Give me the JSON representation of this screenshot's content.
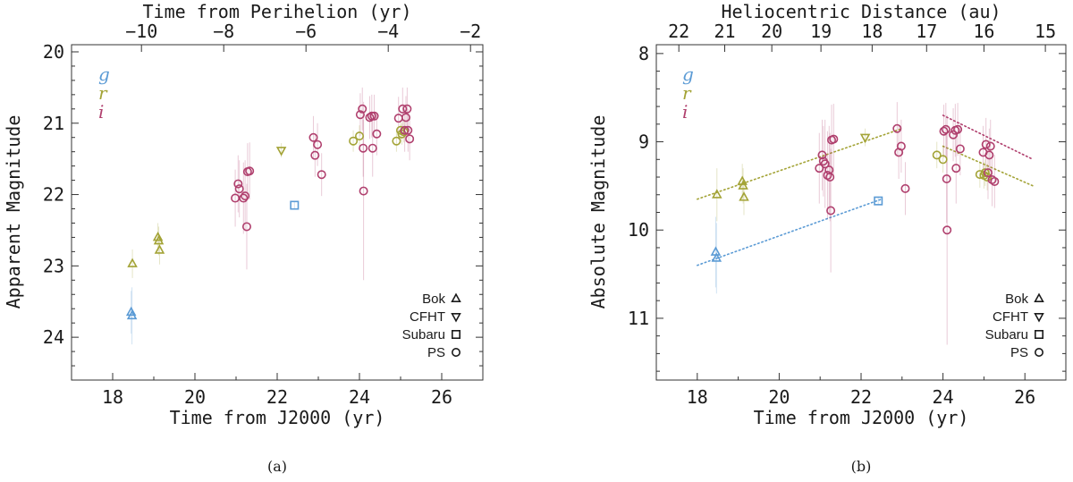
{
  "colors": {
    "g": "#5b9bd5",
    "r": "#a3a336",
    "i": "#b0406e",
    "frame": "#333333",
    "errorbar": "#e8a5b8"
  },
  "chart_data": [
    {
      "id": "a",
      "type": "scatter",
      "caption": "(a)",
      "xlabel": "Time from J2000 (yr)",
      "ylabel": "Apparent Magnitude",
      "top_label": "Time from Perihelion (yr)",
      "xlim": [
        17,
        27
      ],
      "ylim": [
        24.6,
        19.9
      ],
      "xticks": [
        18,
        20,
        22,
        24,
        26
      ],
      "yticks": [
        20,
        21,
        22,
        23,
        24
      ],
      "top_ticks": [
        {
          "label": "−10",
          "x": 18.7
        },
        {
          "label": "−8",
          "x": 20.7
        },
        {
          "label": "−6",
          "x": 22.7
        },
        {
          "label": "−4",
          "x": 24.7
        },
        {
          "label": "−2",
          "x": 26.7
        }
      ],
      "bands": [
        "g",
        "r",
        "i"
      ],
      "legend": [
        {
          "label": "Bok",
          "marker": "triangle-up"
        },
        {
          "label": "CFHT",
          "marker": "triangle-down"
        },
        {
          "label": "Subaru",
          "marker": "square"
        },
        {
          "label": "PS",
          "marker": "circle"
        }
      ],
      "points": [
        {
          "x": 18.45,
          "y": 23.65,
          "band": "g",
          "marker": "triangle-up",
          "err": 0.3
        },
        {
          "x": 18.47,
          "y": 23.7,
          "band": "g",
          "marker": "triangle-up",
          "err": 0.4
        },
        {
          "x": 18.48,
          "y": 22.97,
          "band": "r",
          "marker": "triangle-up",
          "err": 0.2
        },
        {
          "x": 19.1,
          "y": 22.6,
          "band": "r",
          "marker": "triangle-up",
          "err": 0.2
        },
        {
          "x": 19.12,
          "y": 22.65,
          "band": "r",
          "marker": "triangle-up",
          "err": 0.2
        },
        {
          "x": 19.14,
          "y": 22.78,
          "band": "r",
          "marker": "triangle-up",
          "err": 0.2
        },
        {
          "x": 22.1,
          "y": 21.38,
          "band": "r",
          "marker": "triangle-down",
          "err": 0.1
        },
        {
          "x": 22.42,
          "y": 22.15,
          "band": "g",
          "marker": "square",
          "err": 0.05
        },
        {
          "x": 20.98,
          "y": 22.05,
          "band": "i",
          "marker": "circle",
          "err": 0.4
        },
        {
          "x": 21.05,
          "y": 21.85,
          "band": "i",
          "marker": "circle",
          "err": 0.4
        },
        {
          "x": 21.08,
          "y": 21.92,
          "band": "i",
          "marker": "circle",
          "err": 0.4
        },
        {
          "x": 21.18,
          "y": 22.05,
          "band": "i",
          "marker": "circle",
          "err": 0.5
        },
        {
          "x": 21.22,
          "y": 22.02,
          "band": "i",
          "marker": "circle",
          "err": 0.5
        },
        {
          "x": 21.26,
          "y": 22.45,
          "band": "i",
          "marker": "circle",
          "err": 0.6
        },
        {
          "x": 21.28,
          "y": 21.68,
          "band": "i",
          "marker": "circle",
          "err": 0.4
        },
        {
          "x": 21.33,
          "y": 21.67,
          "band": "i",
          "marker": "circle",
          "err": 0.4
        },
        {
          "x": 22.88,
          "y": 21.2,
          "band": "i",
          "marker": "circle",
          "err": 0.3
        },
        {
          "x": 22.92,
          "y": 21.45,
          "band": "i",
          "marker": "circle",
          "err": 0.3
        },
        {
          "x": 22.98,
          "y": 21.3,
          "band": "i",
          "marker": "circle",
          "err": 0.3
        },
        {
          "x": 23.08,
          "y": 21.72,
          "band": "i",
          "marker": "circle",
          "err": 0.3
        },
        {
          "x": 23.85,
          "y": 21.25,
          "band": "r",
          "marker": "circle",
          "err": 0.15
        },
        {
          "x": 24.0,
          "y": 21.18,
          "band": "r",
          "marker": "circle",
          "err": 0.15
        },
        {
          "x": 24.02,
          "y": 20.88,
          "band": "i",
          "marker": "circle",
          "err": 0.3
        },
        {
          "x": 24.07,
          "y": 20.8,
          "band": "i",
          "marker": "circle",
          "err": 0.3
        },
        {
          "x": 24.09,
          "y": 21.35,
          "band": "i",
          "marker": "circle",
          "err": 0.4
        },
        {
          "x": 24.1,
          "y": 21.95,
          "band": "i",
          "marker": "circle",
          "err": 1.25
        },
        {
          "x": 24.25,
          "y": 20.92,
          "band": "i",
          "marker": "circle",
          "err": 0.3
        },
        {
          "x": 24.3,
          "y": 20.9,
          "band": "i",
          "marker": "circle",
          "err": 0.3
        },
        {
          "x": 24.32,
          "y": 21.35,
          "band": "i",
          "marker": "circle",
          "err": 0.4
        },
        {
          "x": 24.36,
          "y": 20.9,
          "band": "i",
          "marker": "circle",
          "err": 0.3
        },
        {
          "x": 24.42,
          "y": 21.15,
          "band": "i",
          "marker": "circle",
          "err": 0.3
        },
        {
          "x": 24.9,
          "y": 21.25,
          "band": "r",
          "marker": "circle",
          "err": 0.15
        },
        {
          "x": 24.95,
          "y": 20.93,
          "band": "i",
          "marker": "circle",
          "err": 0.3
        },
        {
          "x": 25.0,
          "y": 21.1,
          "band": "r",
          "marker": "circle",
          "err": 0.15
        },
        {
          "x": 25.03,
          "y": 21.15,
          "band": "r",
          "marker": "circle",
          "err": 0.15
        },
        {
          "x": 25.05,
          "y": 20.8,
          "band": "i",
          "marker": "circle",
          "err": 0.3
        },
        {
          "x": 25.08,
          "y": 21.12,
          "band": "r",
          "marker": "circle",
          "err": 0.15
        },
        {
          "x": 25.1,
          "y": 21.1,
          "band": "i",
          "marker": "circle",
          "err": 0.3
        },
        {
          "x": 25.13,
          "y": 20.92,
          "band": "i",
          "marker": "circle",
          "err": 0.3
        },
        {
          "x": 25.16,
          "y": 20.8,
          "band": "i",
          "marker": "circle",
          "err": 0.3
        },
        {
          "x": 25.18,
          "y": 21.1,
          "band": "i",
          "marker": "circle",
          "err": 0.3
        },
        {
          "x": 25.22,
          "y": 21.22,
          "band": "i",
          "marker": "circle",
          "err": 0.3
        }
      ]
    },
    {
      "id": "b",
      "type": "scatter",
      "caption": "(b)",
      "xlabel": "Time from J2000 (yr)",
      "ylabel": "Absolute Magnitude",
      "top_label": "Heliocentric Distance (au)",
      "xlim": [
        17,
        27
      ],
      "ylim": [
        11.7,
        7.9
      ],
      "xticks": [
        18,
        20,
        22,
        24,
        26
      ],
      "yticks": [
        8,
        9,
        10,
        11
      ],
      "top_ticks": [
        {
          "label": "22",
          "x": 17.55
        },
        {
          "label": "21",
          "x": 18.67
        },
        {
          "label": "20",
          "x": 19.82
        },
        {
          "label": "19",
          "x": 21.02
        },
        {
          "label": "18",
          "x": 22.27
        },
        {
          "label": "17",
          "x": 23.6
        },
        {
          "label": "16",
          "x": 25.0
        },
        {
          "label": "15",
          "x": 26.5
        }
      ],
      "bands": [
        "g",
        "r",
        "i"
      ],
      "legend": [
        {
          "label": "Bok",
          "marker": "triangle-up"
        },
        {
          "label": "CFHT",
          "marker": "triangle-down"
        },
        {
          "label": "Subaru",
          "marker": "square"
        },
        {
          "label": "PS",
          "marker": "circle"
        }
      ],
      "trend_lines": [
        {
          "band": "g",
          "x": [
            18.0,
            22.5
          ],
          "y": [
            10.4,
            9.65
          ]
        },
        {
          "band": "r",
          "x": [
            18.0,
            23.0
          ],
          "y": [
            9.65,
            8.85
          ]
        },
        {
          "band": "r",
          "x": [
            24.0,
            26.2
          ],
          "y": [
            9.05,
            9.5
          ]
        },
        {
          "band": "i",
          "x": [
            24.0,
            26.2
          ],
          "y": [
            8.7,
            9.2
          ]
        }
      ],
      "points": [
        {
          "x": 18.45,
          "y": 10.25,
          "band": "g",
          "marker": "triangle-up",
          "err": 0.4
        },
        {
          "x": 18.47,
          "y": 10.32,
          "band": "g",
          "marker": "triangle-up",
          "err": 0.4
        },
        {
          "x": 18.48,
          "y": 9.6,
          "band": "r",
          "marker": "triangle-up",
          "err": 0.3
        },
        {
          "x": 19.1,
          "y": 9.45,
          "band": "r",
          "marker": "triangle-up",
          "err": 0.2
        },
        {
          "x": 19.12,
          "y": 9.5,
          "band": "r",
          "marker": "triangle-up",
          "err": 0.2
        },
        {
          "x": 19.14,
          "y": 9.63,
          "band": "r",
          "marker": "triangle-up",
          "err": 0.2
        },
        {
          "x": 22.1,
          "y": 8.95,
          "band": "r",
          "marker": "triangle-down",
          "err": 0.1
        },
        {
          "x": 22.42,
          "y": 9.67,
          "band": "g",
          "marker": "square",
          "err": 0.05
        },
        {
          "x": 20.98,
          "y": 9.3,
          "band": "i",
          "marker": "circle",
          "err": 0.4
        },
        {
          "x": 21.05,
          "y": 9.15,
          "band": "i",
          "marker": "circle",
          "err": 0.4
        },
        {
          "x": 21.08,
          "y": 9.22,
          "band": "i",
          "marker": "circle",
          "err": 0.4
        },
        {
          "x": 21.12,
          "y": 9.25,
          "band": "i",
          "marker": "circle",
          "err": 0.5
        },
        {
          "x": 21.18,
          "y": 9.38,
          "band": "i",
          "marker": "circle",
          "err": 0.5
        },
        {
          "x": 21.22,
          "y": 9.32,
          "band": "i",
          "marker": "circle",
          "err": 0.5
        },
        {
          "x": 21.24,
          "y": 9.4,
          "band": "i",
          "marker": "circle",
          "err": 0.5
        },
        {
          "x": 21.26,
          "y": 9.78,
          "band": "i",
          "marker": "circle",
          "err": 0.7
        },
        {
          "x": 21.28,
          "y": 8.98,
          "band": "i",
          "marker": "circle",
          "err": 0.4
        },
        {
          "x": 21.33,
          "y": 8.97,
          "band": "i",
          "marker": "circle",
          "err": 0.4
        },
        {
          "x": 22.88,
          "y": 8.85,
          "band": "i",
          "marker": "circle",
          "err": 0.3
        },
        {
          "x": 22.92,
          "y": 9.12,
          "band": "i",
          "marker": "circle",
          "err": 0.3
        },
        {
          "x": 22.98,
          "y": 9.05,
          "band": "i",
          "marker": "circle",
          "err": 0.3
        },
        {
          "x": 23.08,
          "y": 9.53,
          "band": "i",
          "marker": "circle",
          "err": 0.3
        },
        {
          "x": 23.85,
          "y": 9.15,
          "band": "r",
          "marker": "circle",
          "err": 0.15
        },
        {
          "x": 24.0,
          "y": 9.2,
          "band": "r",
          "marker": "circle",
          "err": 0.15
        },
        {
          "x": 24.02,
          "y": 8.88,
          "band": "i",
          "marker": "circle",
          "err": 0.3
        },
        {
          "x": 24.07,
          "y": 8.86,
          "band": "i",
          "marker": "circle",
          "err": 0.3
        },
        {
          "x": 24.09,
          "y": 9.42,
          "band": "i",
          "marker": "circle",
          "err": 0.5
        },
        {
          "x": 24.1,
          "y": 10.0,
          "band": "i",
          "marker": "circle",
          "err": 1.3
        },
        {
          "x": 24.25,
          "y": 8.92,
          "band": "i",
          "marker": "circle",
          "err": 0.3
        },
        {
          "x": 24.3,
          "y": 8.87,
          "band": "i",
          "marker": "circle",
          "err": 0.3
        },
        {
          "x": 24.32,
          "y": 9.3,
          "band": "i",
          "marker": "circle",
          "err": 0.4
        },
        {
          "x": 24.36,
          "y": 8.86,
          "band": "i",
          "marker": "circle",
          "err": 0.3
        },
        {
          "x": 24.42,
          "y": 9.08,
          "band": "i",
          "marker": "circle",
          "err": 0.3
        },
        {
          "x": 24.9,
          "y": 9.37,
          "band": "r",
          "marker": "circle",
          "err": 0.15
        },
        {
          "x": 24.98,
          "y": 9.12,
          "band": "i",
          "marker": "circle",
          "err": 0.3
        },
        {
          "x": 25.0,
          "y": 9.38,
          "band": "r",
          "marker": "circle",
          "err": 0.15
        },
        {
          "x": 25.03,
          "y": 9.35,
          "band": "r",
          "marker": "circle",
          "err": 0.15
        },
        {
          "x": 25.05,
          "y": 9.03,
          "band": "i",
          "marker": "circle",
          "err": 0.3
        },
        {
          "x": 25.08,
          "y": 9.4,
          "band": "r",
          "marker": "circle",
          "err": 0.15
        },
        {
          "x": 25.1,
          "y": 9.35,
          "band": "i",
          "marker": "circle",
          "err": 0.3
        },
        {
          "x": 25.13,
          "y": 9.15,
          "band": "i",
          "marker": "circle",
          "err": 0.3
        },
        {
          "x": 25.16,
          "y": 9.05,
          "band": "i",
          "marker": "circle",
          "err": 0.3
        },
        {
          "x": 25.2,
          "y": 9.43,
          "band": "i",
          "marker": "circle",
          "err": 0.3
        },
        {
          "x": 25.26,
          "y": 9.45,
          "band": "i",
          "marker": "circle",
          "err": 0.3
        }
      ]
    }
  ]
}
